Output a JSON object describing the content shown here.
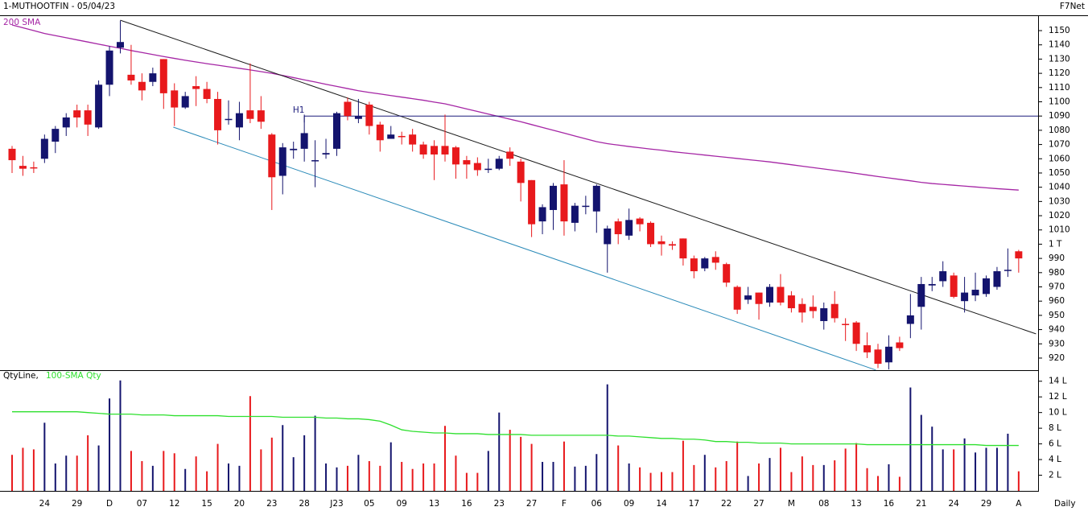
{
  "brand": "F7Net",
  "interval": "Daily",
  "chart_data": [
    {
      "type": "candlestick",
      "title": "1-MUTHOOTFIN - 05/04/23",
      "categories": [
        null,
        null,
        null,
        "24",
        null,
        null,
        "29",
        null,
        null,
        "D",
        null,
        null,
        "07",
        null,
        null,
        "12",
        null,
        null,
        "15",
        null,
        null,
        "20",
        null,
        null,
        "23",
        null,
        null,
        "28",
        null,
        null,
        "J23",
        null,
        null,
        "05",
        null,
        null,
        "09",
        null,
        null,
        "13",
        null,
        null,
        "16",
        null,
        null,
        "23",
        null,
        null,
        "27",
        null,
        null,
        "F",
        null,
        null,
        "06",
        null,
        null,
        "09",
        null,
        null,
        "14",
        null,
        null,
        "17",
        null,
        null,
        "22",
        null,
        null,
        "27",
        null,
        null,
        "M",
        null,
        null,
        "08",
        null,
        null,
        "13",
        null,
        null,
        "16",
        null,
        null,
        "21",
        null,
        null,
        "24",
        null,
        null,
        "29",
        null,
        null,
        "A"
      ],
      "open": [
        1067,
        1055,
        1054,
        1060,
        1072,
        1082,
        1094,
        1094,
        1082,
        1112,
        1138,
        1119,
        1114,
        1114,
        1130,
        1108,
        1096,
        1111,
        1109,
        1102,
        1088,
        1082,
        1094,
        1094,
        1077,
        1048,
        1066,
        1067,
        1059,
        1063,
        1067,
        1100,
        1088,
        1098,
        1084,
        1074,
        1076,
        1077,
        1070,
        1069,
        1069,
        1068,
        1059,
        1057,
        1053,
        1053,
        1065,
        1058,
        1045,
        1016,
        1024,
        1042,
        1015,
        1027,
        1023,
        1000,
        1016,
        1006,
        1018,
        1015,
        1002,
        1000,
        1004,
        990,
        983,
        991,
        986,
        970,
        961,
        966,
        959,
        970,
        964,
        958,
        956,
        946,
        958,
        944,
        945,
        929,
        926,
        917,
        931,
        944,
        956,
        971,
        974,
        978,
        960,
        964,
        965,
        970,
        982,
        995
      ],
      "high": [
        1069,
        1062,
        1058,
        1077,
        1083,
        1092,
        1098,
        1098,
        1115,
        1139,
        1157,
        1140,
        1120,
        1124,
        1130,
        1113,
        1107,
        1118,
        1114,
        1107,
        1101,
        1100,
        1127,
        1104,
        1078,
        1071,
        1072,
        1091,
        1073,
        1074,
        1093,
        1103,
        1102,
        1100,
        1086,
        1083,
        1079,
        1081,
        1072,
        1073,
        1091,
        1069,
        1062,
        1061,
        1060,
        1062,
        1068,
        1060,
        1045,
        1028,
        1043,
        1059,
        1029,
        1034,
        1042,
        1013,
        1018,
        1025,
        1019,
        1016,
        1006,
        1002,
        1004,
        992,
        991,
        995,
        987,
        971,
        970,
        966,
        972,
        979,
        967,
        962,
        964,
        959,
        967,
        948,
        946,
        938,
        930,
        936,
        935,
        965,
        977,
        977,
        988,
        980,
        977,
        980,
        978,
        984,
        997,
        996
      ],
      "low": [
        1050,
        1048,
        1050,
        1057,
        1064,
        1076,
        1082,
        1076,
        1081,
        1104,
        1134,
        1112,
        1101,
        1111,
        1095,
        1083,
        1095,
        1097,
        1099,
        1070,
        1084,
        1073,
        1085,
        1081,
        1024,
        1035,
        1060,
        1058,
        1040,
        1060,
        1062,
        1087,
        1085,
        1077,
        1065,
        1074,
        1070,
        1065,
        1060,
        1045,
        1058,
        1046,
        1046,
        1048,
        1050,
        1052,
        1055,
        1030,
        1005,
        1007,
        1010,
        1006,
        1009,
        1021,
        1008,
        980,
        1000,
        1003,
        1009,
        998,
        992,
        996,
        985,
        976,
        981,
        982,
        970,
        951,
        958,
        947,
        956,
        957,
        952,
        945,
        948,
        940,
        945,
        932,
        925,
        920,
        913,
        912,
        925,
        934,
        940,
        967,
        970,
        962,
        952,
        960,
        963,
        968,
        977,
        980
      ],
      "close": [
        1059,
        1053,
        1053.5,
        1074,
        1081,
        1089,
        1089,
        1084,
        1112,
        1136,
        1142,
        1115,
        1108,
        1120,
        1106,
        1096,
        1104,
        1109,
        1102,
        1080,
        1088,
        1092,
        1088,
        1086,
        1047,
        1068,
        1067,
        1078,
        1059,
        1064,
        1092,
        1090,
        1090,
        1083,
        1073,
        1077,
        1075.5,
        1070,
        1063,
        1063,
        1063,
        1056,
        1056,
        1052,
        1053,
        1060,
        1060,
        1043,
        1014,
        1026,
        1041,
        1016,
        1027,
        1027,
        1041,
        1011,
        1007,
        1017,
        1014,
        1000,
        1000,
        999,
        990,
        981,
        990,
        987,
        973,
        954,
        964,
        958,
        970,
        959,
        955,
        952,
        953,
        955,
        948,
        943.5,
        930,
        924,
        916,
        928,
        927,
        950,
        972,
        972,
        981,
        963,
        966,
        968,
        976,
        981,
        982,
        990
      ],
      "up_color": "#14146e",
      "down_color": "#e8191c",
      "ylim": [
        911.5,
        1160.2
      ],
      "yticks": [
        920,
        930,
        940,
        950,
        960,
        970,
        980,
        990,
        {
          "value": 1000,
          "label": "1 T"
        },
        1010,
        1020,
        1030,
        1040,
        1050,
        1060,
        1070,
        1080,
        1090,
        1100,
        1110,
        1120,
        1130,
        1140,
        1150
      ],
      "sma": {
        "name": "200 SMA",
        "color": "#a526a5",
        "values": [
          1154,
          1152,
          1150,
          1148,
          1146.5,
          1145,
          1143.5,
          1142,
          1140.5,
          1139,
          1137.6,
          1136,
          1134.6,
          1133.2,
          1131.8,
          1130.5,
          1129.2,
          1128,
          1126.8,
          1125.7,
          1124.6,
          1123.5,
          1122.4,
          1121.2,
          1120,
          1118.5,
          1117,
          1115.4,
          1113.9,
          1112.3,
          1110.8,
          1109.3,
          1107.8,
          1106.6,
          1105.5,
          1104.4,
          1103.3,
          1102.2,
          1101.1,
          1099.8,
          1098.6,
          1096.8,
          1095,
          1093.2,
          1091.4,
          1089.6,
          1087.8,
          1086,
          1084,
          1082,
          1080,
          1078,
          1076,
          1074,
          1072,
          1070.6,
          1069.6,
          1068.6,
          1067.7,
          1066.8,
          1066,
          1065,
          1064.2,
          1063.4,
          1062.6,
          1061.8,
          1061,
          1060.2,
          1059.4,
          1058.6,
          1057.8,
          1056.8,
          1055.8,
          1054.8,
          1053.8,
          1052.8,
          1051.8,
          1050.8,
          1049.7,
          1048.6,
          1047.5,
          1046.5,
          1045.5,
          1044.5,
          1043.4,
          1042.6,
          1042,
          1041.4,
          1040.8,
          1040.2,
          1039.6,
          1039,
          1038.5,
          1038
        ]
      },
      "trendlines": [
        {
          "color": "#1a1a1a",
          "x": [
            10,
            94.6
          ],
          "values": [
            1157.3,
            937
          ]
        },
        {
          "color": "#2a8ab8",
          "x": [
            14.9,
            79.8
          ],
          "values": [
            1082.2,
            911.6
          ]
        }
      ],
      "h1": {
        "label": "H1",
        "value": 1090,
        "x": 27,
        "color": "#1c1c7c"
      }
    },
    {
      "type": "bar",
      "title": "QtyLine,",
      "values": [
        4.6,
        5.5,
        5.3,
        8.7,
        3.5,
        4.5,
        4.5,
        7.1,
        5.8,
        11.8,
        14.1,
        5.1,
        3.8,
        3.2,
        5.1,
        4.8,
        2.8,
        4.4,
        2.5,
        6.0,
        3.5,
        3.2,
        12.1,
        5.3,
        6.8,
        8.4,
        4.3,
        7.1,
        9.6,
        3.5,
        3.0,
        3.2,
        4.6,
        3.8,
        3.2,
        6.2,
        3.7,
        2.8,
        3.5,
        3.5,
        8.3,
        4.5,
        2.3,
        2.3,
        5.1,
        10.0,
        7.8,
        6.9,
        6.0,
        3.7,
        3.7,
        6.3,
        3.1,
        3.2,
        4.7,
        13.6,
        5.8,
        3.5,
        3.0,
        2.3,
        2.4,
        2.4,
        6.4,
        3.3,
        4.6,
        3.0,
        3.8,
        6.3,
        1.9,
        3.5,
        4.2,
        5.5,
        2.4,
        4.4,
        3.3,
        3.3,
        3.9,
        5.4,
        6.1,
        2.9,
        1.9,
        3.4,
        1.8,
        13.2,
        9.7,
        8.2,
        5.3,
        5.3,
        6.7,
        4.9,
        5.5,
        5.5,
        7.3,
        2.5
      ],
      "ylim": [
        0,
        15
      ],
      "yticks": [
        {
          "value": 2,
          "label": "2 L"
        },
        {
          "value": 4,
          "label": "4 L"
        },
        {
          "value": 6,
          "label": "6 L"
        },
        {
          "value": 8,
          "label": "8 L"
        },
        {
          "value": 10,
          "label": "10 L"
        },
        {
          "value": 12,
          "label": "12 L"
        },
        {
          "value": 14,
          "label": "14 L"
        }
      ],
      "sma": {
        "name": "100-SMA Qty",
        "color": "#2ee02e",
        "values": [
          10.1,
          10.1,
          10.1,
          10.1,
          10.1,
          10.1,
          10.1,
          10.0,
          9.9,
          9.8,
          9.8,
          9.8,
          9.7,
          9.7,
          9.7,
          9.6,
          9.6,
          9.6,
          9.6,
          9.6,
          9.5,
          9.5,
          9.5,
          9.5,
          9.5,
          9.4,
          9.4,
          9.4,
          9.4,
          9.3,
          9.3,
          9.2,
          9.2,
          9.1,
          8.9,
          8.4,
          7.8,
          7.6,
          7.5,
          7.4,
          7.4,
          7.3,
          7.3,
          7.3,
          7.2,
          7.2,
          7.2,
          7.2,
          7.1,
          7.1,
          7.1,
          7.1,
          7.1,
          7.1,
          7.1,
          7.1,
          7.0,
          7.0,
          6.9,
          6.8,
          6.7,
          6.7,
          6.6,
          6.6,
          6.5,
          6.3,
          6.3,
          6.2,
          6.2,
          6.1,
          6.1,
          6.1,
          6.0,
          6.0,
          6.0,
          6.0,
          6.0,
          6.0,
          6.0,
          5.9,
          5.9,
          5.9,
          5.9,
          5.9,
          5.9,
          5.9,
          5.9,
          5.9,
          5.9,
          5.9,
          5.8,
          5.8,
          5.8,
          5.8
        ]
      }
    }
  ]
}
